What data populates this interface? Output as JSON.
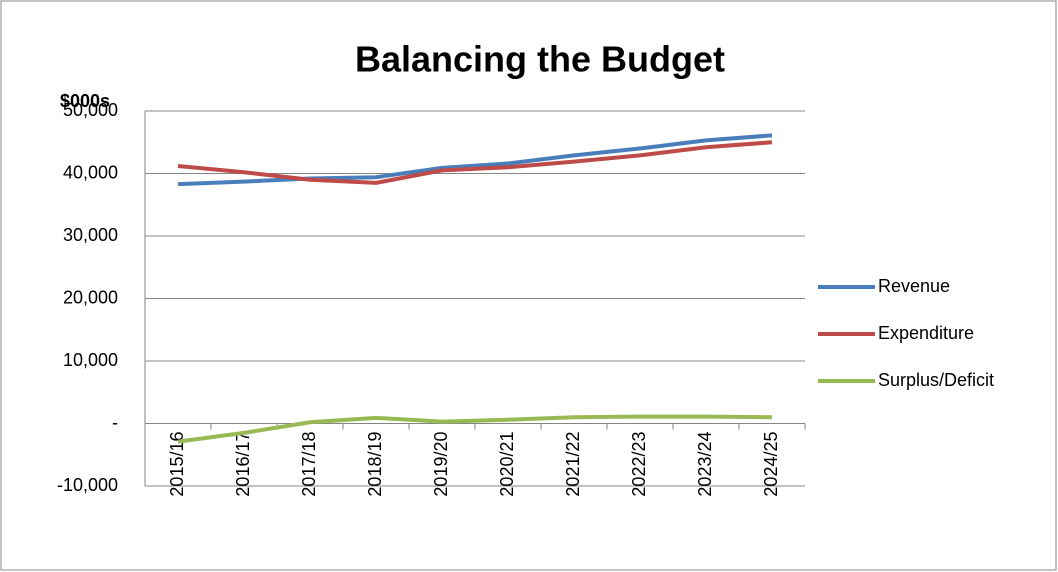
{
  "chart_data": {
    "type": "line",
    "title": "Balancing the Budget",
    "y_label": "$000s",
    "categories": [
      "2015/16",
      "2016/17",
      "2017/18",
      "2018/19",
      "2019/20",
      "2020/21",
      "2021/22",
      "2022/23",
      "2023/24",
      "2024/25"
    ],
    "series": [
      {
        "name": "Revenue",
        "color": "#4a7ebb",
        "values": [
          38300,
          38700,
          39200,
          39400,
          40900,
          41600,
          42900,
          44000,
          45300,
          46100
        ]
      },
      {
        "name": "Expenditure",
        "color": "#be4b48",
        "values": [
          41200,
          40200,
          39000,
          38500,
          40500,
          41000,
          41900,
          42900,
          44200,
          45000
        ]
      },
      {
        "name": "Surplus/Deficit",
        "color": "#98b954",
        "values": [
          -2900,
          -1500,
          200,
          900,
          300,
          600,
          1000,
          1100,
          1100,
          1000
        ]
      }
    ],
    "ylim": [
      -10000,
      50000
    ],
    "yticks": [
      {
        "value": -10000,
        "label": "-10,000"
      },
      {
        "value": 0,
        "label": "-"
      },
      {
        "value": 10000,
        "label": "10,000"
      },
      {
        "value": 20000,
        "label": "20,000"
      },
      {
        "value": 30000,
        "label": "30,000"
      },
      {
        "value": 40000,
        "label": "40,000"
      },
      {
        "value": 50000,
        "label": "50,000"
      }
    ],
    "grid": true,
    "legend": "right"
  }
}
